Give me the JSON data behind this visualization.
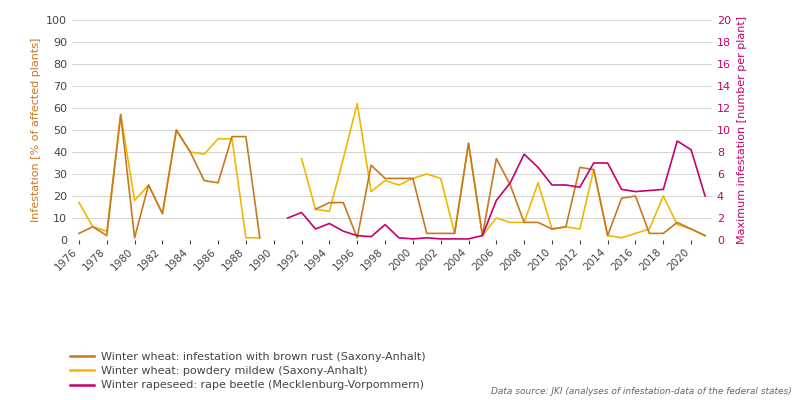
{
  "years_wheat": [
    1976,
    1977,
    1978,
    1979,
    1980,
    1981,
    1982,
    1983,
    1984,
    1985,
    1986,
    1987,
    1988,
    1989,
    1990,
    1991,
    1992,
    1993,
    1994,
    1995,
    1996,
    1997,
    1998,
    1999,
    2000,
    2001,
    2002,
    2003,
    2004,
    2005,
    2006,
    2007,
    2008,
    2009,
    2010,
    2011,
    2012,
    2013,
    2014,
    2015,
    2016,
    2017,
    2018,
    2019,
    2020,
    2021
  ],
  "brown_rust": [
    3,
    6,
    2,
    57,
    1,
    25,
    12,
    50,
    40,
    27,
    26,
    47,
    47,
    1,
    null,
    null,
    null,
    14,
    17,
    17,
    1,
    34,
    28,
    28,
    28,
    3,
    3,
    3,
    44,
    2,
    37,
    25,
    8,
    8,
    5,
    6,
    33,
    32,
    2,
    19,
    20,
    3,
    3,
    8,
    5,
    2
  ],
  "powdery_mildew": [
    17,
    6,
    4,
    57,
    18,
    25,
    12,
    50,
    40,
    39,
    46,
    46,
    1,
    1,
    null,
    null,
    37,
    14,
    13,
    37,
    62,
    22,
    27,
    25,
    28,
    30,
    28,
    3,
    44,
    2,
    10,
    8,
    8,
    26,
    5,
    6,
    5,
    32,
    2,
    1,
    3,
    5,
    20,
    7,
    5,
    2
  ],
  "years_rape": [
    1991,
    1992,
    1993,
    1994,
    1995,
    1996,
    1997,
    1998,
    1999,
    2000,
    2001,
    2002,
    2003,
    2004,
    2005,
    2006,
    2007,
    2008,
    2009,
    2010,
    2011,
    2012,
    2013,
    2014,
    2015,
    2016,
    2017,
    2018,
    2019,
    2020,
    2021
  ],
  "rape_beetle": [
    2.0,
    2.5,
    1.0,
    1.5,
    0.8,
    0.4,
    0.3,
    1.4,
    0.2,
    0.1,
    0.2,
    0.1,
    0.1,
    0.1,
    0.4,
    3.6,
    5.2,
    7.8,
    6.6,
    5.0,
    5.0,
    4.8,
    7.0,
    7.0,
    4.6,
    4.4,
    4.5,
    4.6,
    9.0,
    8.2,
    4.0
  ],
  "color_brown_rust": "#c87820",
  "color_powdery_mildew": "#f0b800",
  "color_rape_beetle": "#c8006e",
  "ylabel_left": "Infestation [% of affected plants]",
  "ylabel_right": "Maximum infestation [number per plant]",
  "ylim_left": [
    0,
    100
  ],
  "ylim_right": [
    0,
    20
  ],
  "yticks_left": [
    0,
    10,
    20,
    30,
    40,
    50,
    60,
    70,
    80,
    90,
    100
  ],
  "yticks_right": [
    0,
    2,
    4,
    6,
    8,
    10,
    12,
    14,
    16,
    18,
    20
  ],
  "xticks": [
    1976,
    1978,
    1980,
    1982,
    1984,
    1986,
    1988,
    1990,
    1992,
    1994,
    1996,
    1998,
    2000,
    2002,
    2004,
    2006,
    2008,
    2010,
    2012,
    2014,
    2016,
    2018,
    2020
  ],
  "xlim": [
    1975.5,
    2021.5
  ],
  "legend_labels": [
    "Winter wheat: infestation with brown rust (Saxony-Anhalt)",
    "Winter wheat: powdery mildew (Saxony-Anhalt)",
    "Winter rapeseed: rape beetle (Mecklenburg-Vorpommern)"
  ],
  "source_text": "Data source: JKI (analyses of infestation-data of the federal states)",
  "background_color": "#ffffff",
  "grid_color": "#cccccc",
  "linewidth": 1.2,
  "tick_color": "#888888",
  "label_color_left": "#c87820",
  "label_color_right": "#c8006e",
  "text_color": "#444444"
}
